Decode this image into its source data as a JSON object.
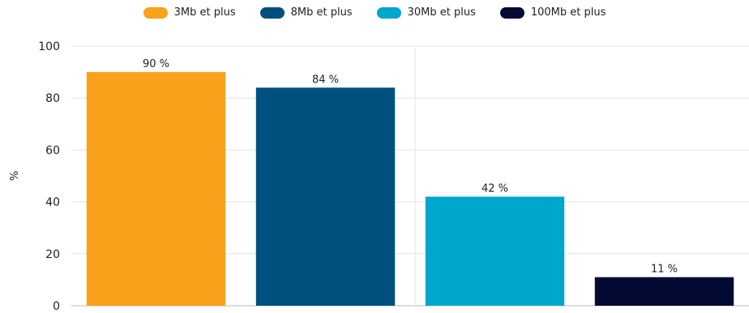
{
  "chart_data": {
    "type": "bar",
    "series": [
      {
        "name": "3Mb et plus",
        "value": 90,
        "label": "90 %",
        "color": "#f9a11b"
      },
      {
        "name": "8Mb et plus",
        "value": 84,
        "label": "84 %",
        "color": "#00507f"
      },
      {
        "name": "30Mb et plus",
        "value": 42,
        "label": "42 %",
        "color": "#00a7cc"
      },
      {
        "name": "100Mb et plus",
        "value": 11,
        "label": "11 %",
        "color": "#040b33"
      }
    ],
    "ylabel": "%",
    "ylim": [
      0,
      100
    ],
    "yticks": [
      0,
      20,
      40,
      60,
      80,
      100
    ],
    "grid": true,
    "legend_position": "top-center"
  }
}
